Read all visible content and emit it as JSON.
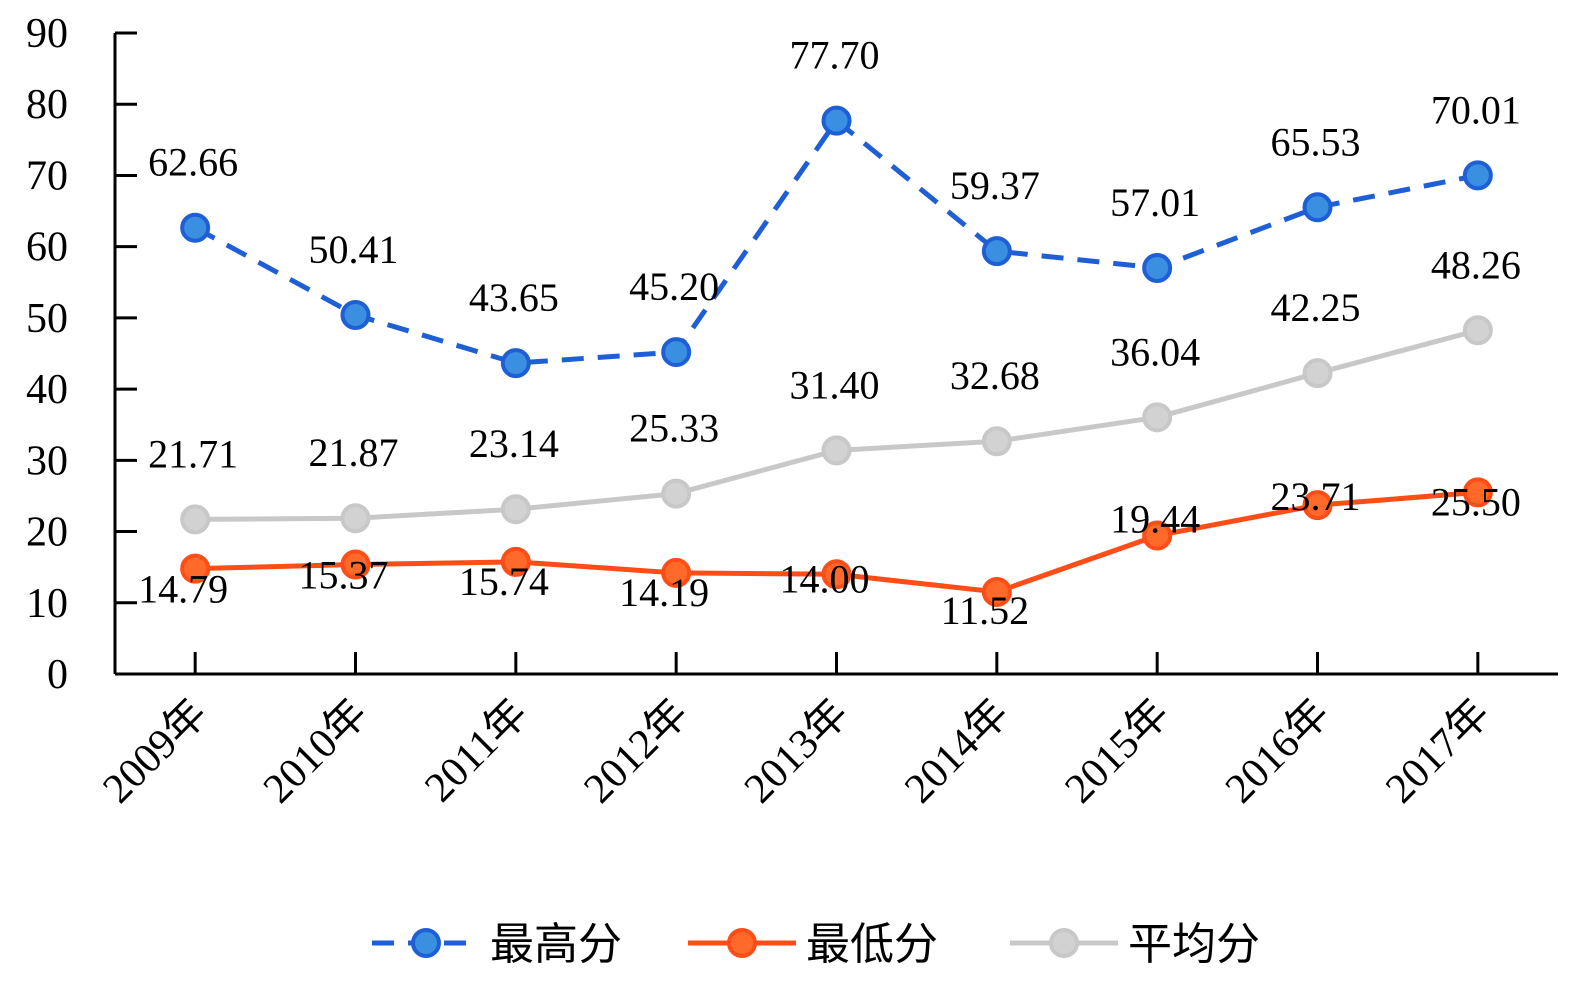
{
  "chart_data": {
    "type": "line",
    "categories": [
      "2009年",
      "2010年",
      "2011年",
      "2012年",
      "2013年",
      "2014年",
      "2015年",
      "2016年",
      "2017年"
    ],
    "series": [
      {
        "name": "最高分",
        "color": "#1f5fd6",
        "marker_fill": "#3a8fe0",
        "dash": "dashed",
        "values": [
          62.66,
          50.41,
          43.65,
          45.2,
          77.7,
          59.37,
          57.01,
          65.53,
          70.01
        ],
        "labels": [
          "62.66",
          "50.41",
          "43.65",
          "45.20",
          "77.70",
          "59.37",
          "57.01",
          "65.53",
          "70.01"
        ]
      },
      {
        "name": "最低分",
        "color": "#ff4d17",
        "marker_fill": "#ff6a2a",
        "dash": "solid",
        "values": [
          14.79,
          15.37,
          15.74,
          14.19,
          14.0,
          11.52,
          19.44,
          23.71,
          25.5
        ],
        "labels": [
          "14.79",
          "15.37",
          "15.74",
          "14.19",
          "14.00",
          "11.52",
          "19.44",
          "23.71",
          "25.50"
        ]
      },
      {
        "name": "平均分",
        "color": "#c8c8c8",
        "marker_fill": "#d2d2d2",
        "dash": "solid",
        "values": [
          21.71,
          21.87,
          23.14,
          25.33,
          31.4,
          32.68,
          36.04,
          42.25,
          48.26
        ],
        "labels": [
          "21.71",
          "21.87",
          "23.14",
          "25.33",
          "31.40",
          "32.68",
          "36.04",
          "42.25",
          "48.26"
        ]
      }
    ],
    "ylim": [
      0,
      90
    ],
    "yticks": [
      "0",
      "10",
      "20",
      "30",
      "40",
      "50",
      "60",
      "70",
      "80",
      "90"
    ],
    "grid": false,
    "legend_position": "bottom",
    "title": "",
    "xlabel": "",
    "ylabel": ""
  }
}
